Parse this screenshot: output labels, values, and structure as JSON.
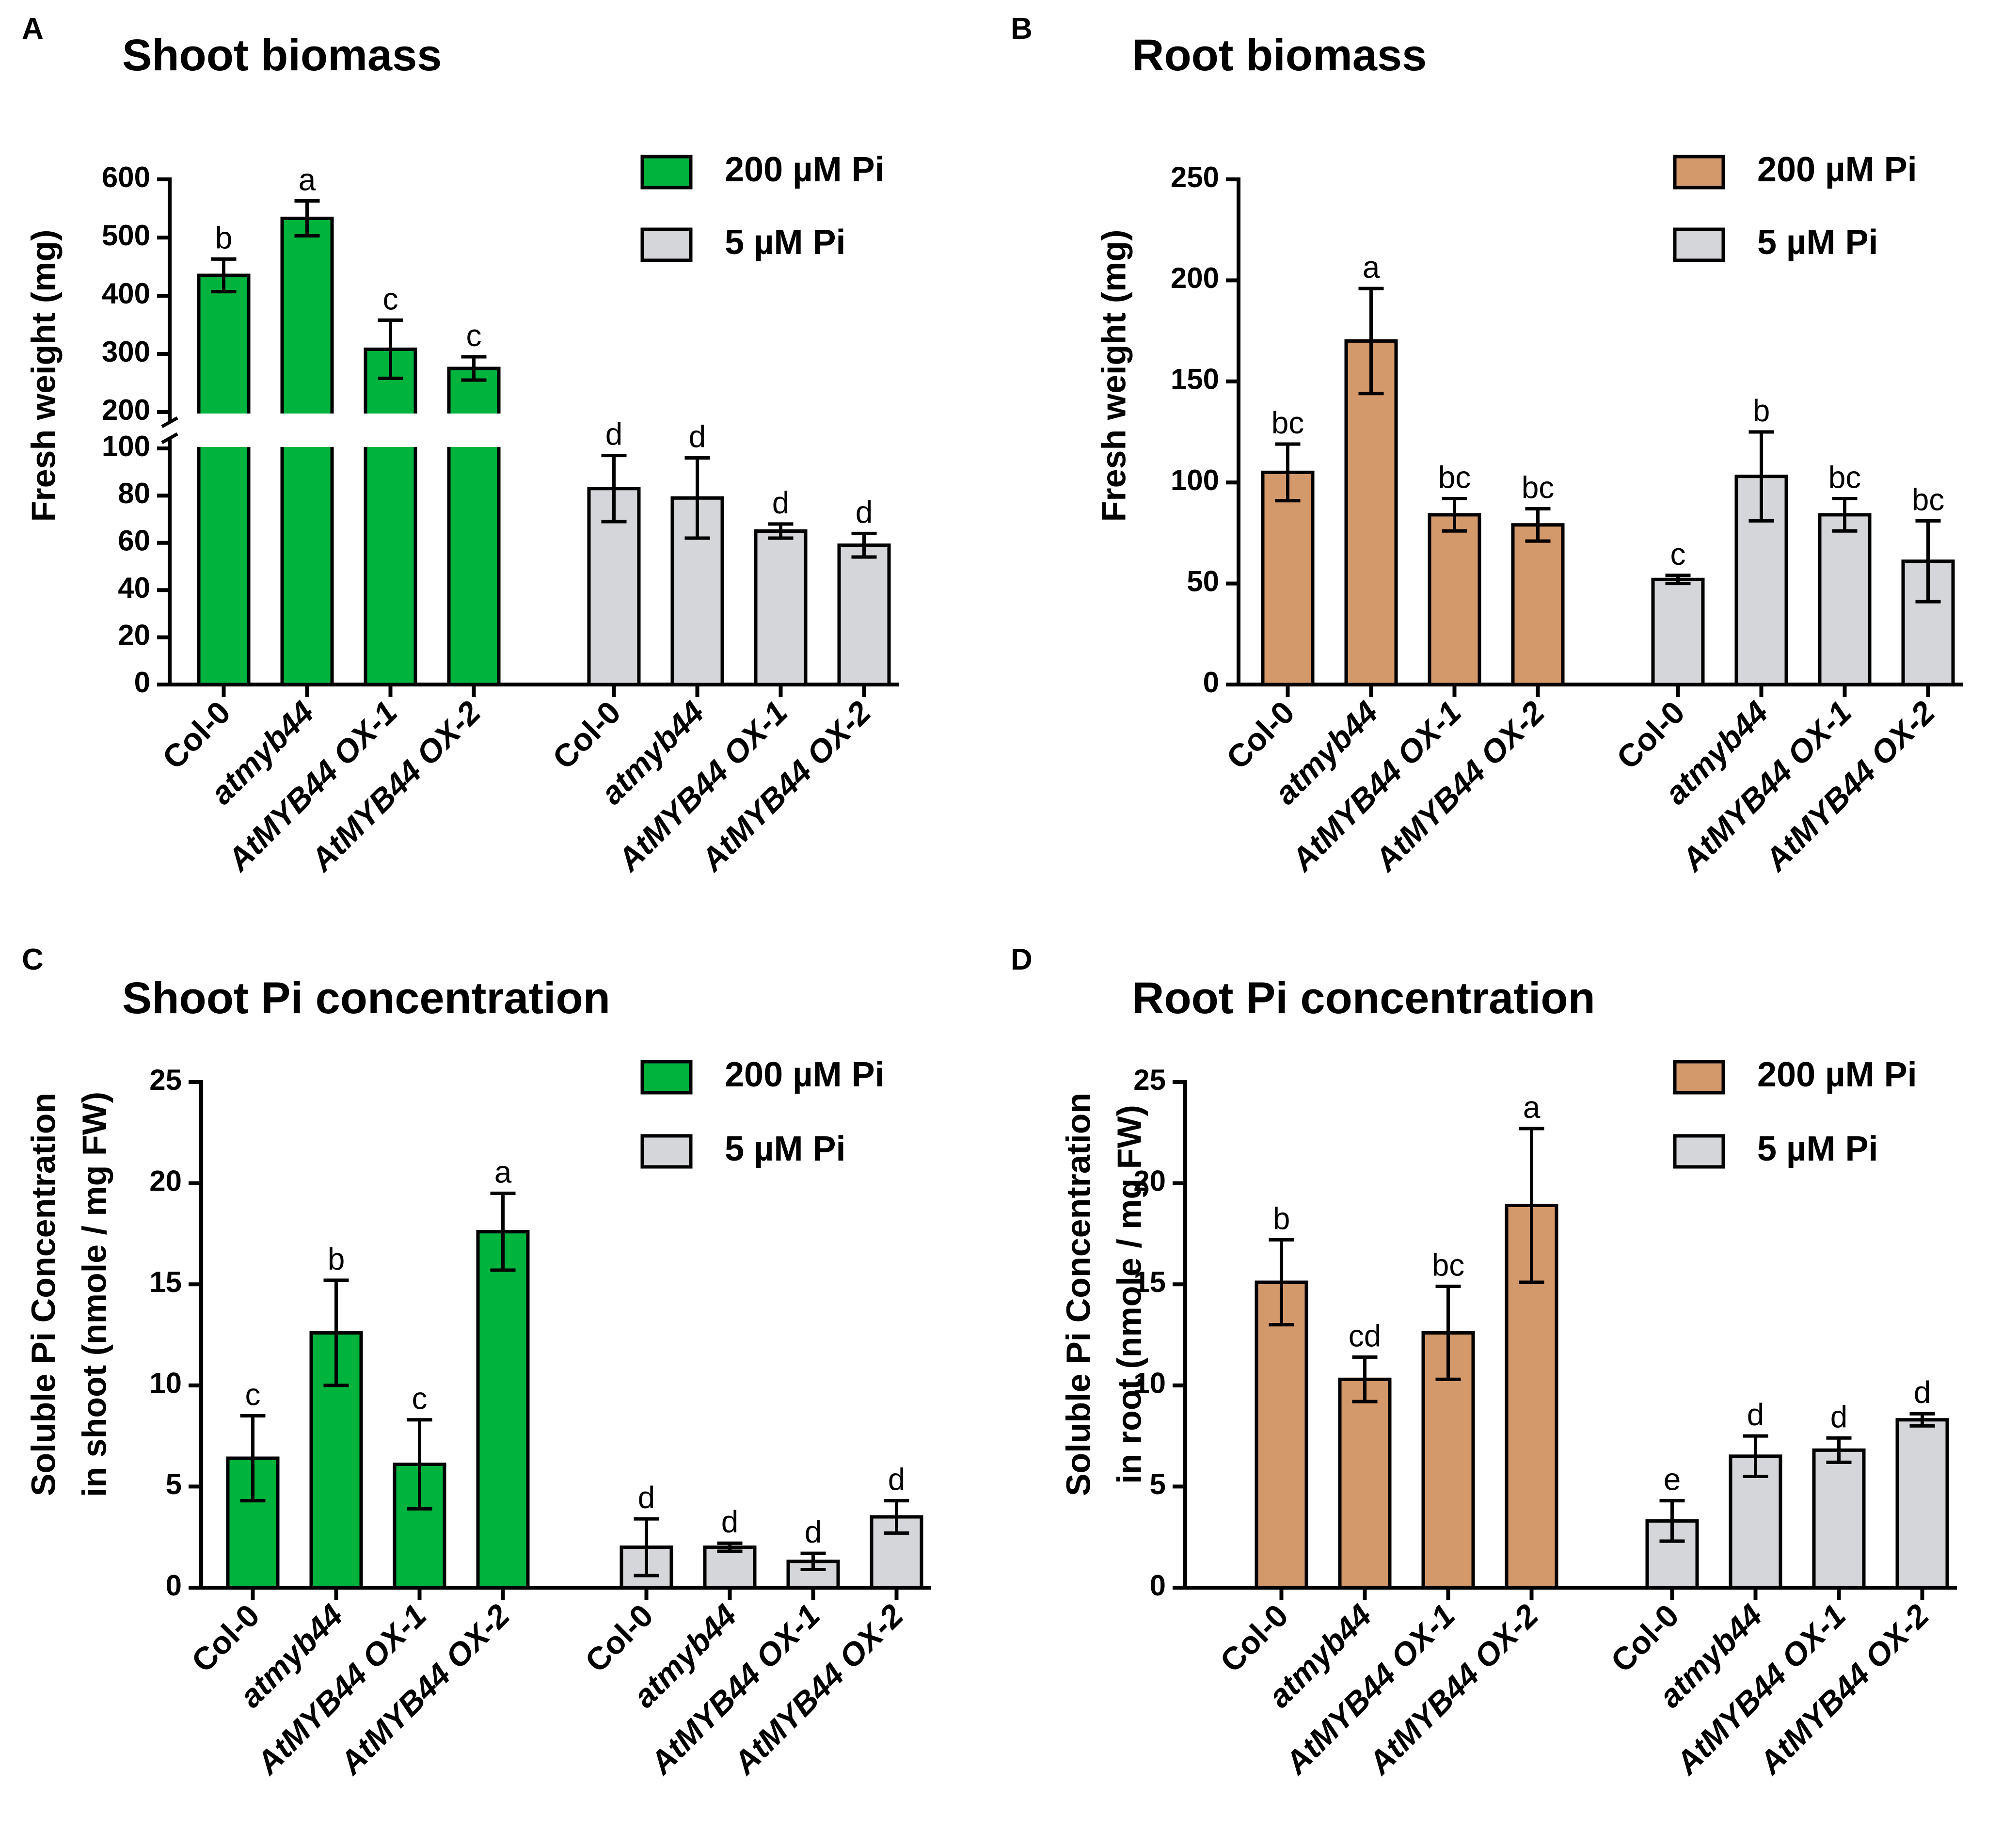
{
  "colors": {
    "shoot_200": "#00b33c",
    "root_200": "#d4996a",
    "low_pi": "#d4d6d9",
    "stroke": "#000000"
  },
  "chart_data": [
    {
      "type": "bar",
      "panel_letter": "A",
      "title": "Shoot biomass",
      "ylabel": "Fresh weight (mg)",
      "categories": [
        "Col-0",
        "atmyb44",
        "AtMYB44 OX-1",
        "AtMYB44 OX-2"
      ],
      "italic_categories": [
        "atmyb44",
        "AtMYB44 OX-1",
        "AtMYB44 OX-2"
      ],
      "series": [
        {
          "name": "200 µM Pi",
          "color_key": "shoot_200",
          "values": [
            435,
            533,
            308,
            275
          ],
          "errors": [
            28,
            30,
            50,
            20
          ],
          "letters": [
            "b",
            "a",
            "c",
            "c"
          ]
        },
        {
          "name": "5 µM Pi",
          "color_key": "low_pi",
          "values": [
            83,
            79,
            65,
            59
          ],
          "errors": [
            14,
            17,
            3,
            5
          ],
          "letters": [
            "d",
            "d",
            "d",
            "d"
          ]
        }
      ],
      "axis_break": {
        "lower": [
          0,
          100
        ],
        "upper": [
          200,
          600
        ]
      },
      "yticks_lower": [
        0,
        20,
        40,
        60,
        80,
        100
      ],
      "yticks_upper": [
        200,
        300,
        400,
        500,
        600
      ],
      "legend_position": "top-right"
    },
    {
      "type": "bar",
      "panel_letter": "B",
      "title": "Root biomass",
      "ylabel": "Fresh weight (mg)",
      "categories": [
        "Col-0",
        "atmyb44",
        "AtMYB44 OX-1",
        "AtMYB44 OX-2"
      ],
      "italic_categories": [
        "atmyb44",
        "AtMYB44 OX-1",
        "AtMYB44 OX-2"
      ],
      "series": [
        {
          "name": "200 µM Pi",
          "color_key": "root_200",
          "values": [
            105,
            170,
            84,
            79
          ],
          "errors": [
            14,
            26,
            8,
            8
          ],
          "letters": [
            "bc",
            "a",
            "bc",
            "bc"
          ]
        },
        {
          "name": "5 µM Pi",
          "color_key": "low_pi",
          "values": [
            52,
            103,
            84,
            61
          ],
          "errors": [
            2,
            22,
            8,
            20
          ],
          "letters": [
            "c",
            "b",
            "bc",
            "bc"
          ]
        }
      ],
      "ylim": [
        0,
        250
      ],
      "yticks": [
        0,
        50,
        100,
        150,
        200,
        250
      ],
      "legend_position": "top-right"
    },
    {
      "type": "bar",
      "panel_letter": "C",
      "title": "Shoot Pi concentration",
      "ylabel_lines": [
        "Soluble Pi Concentration",
        "in shoot (nmole / mg FW)"
      ],
      "categories": [
        "Col-0",
        "atmyb44",
        "AtMYB44 OX-1",
        "AtMYB44 OX-2"
      ],
      "italic_categories": [
        "atmyb44",
        "AtMYB44 OX-1",
        "AtMYB44 OX-2"
      ],
      "series": [
        {
          "name": "200 µM Pi",
          "color_key": "shoot_200",
          "values": [
            6.4,
            12.6,
            6.1,
            17.6
          ],
          "errors": [
            2.1,
            2.6,
            2.2,
            1.9
          ],
          "letters": [
            "c",
            "b",
            "c",
            "a"
          ]
        },
        {
          "name": "5 µM Pi",
          "color_key": "low_pi",
          "values": [
            2.0,
            2.0,
            1.3,
            3.5
          ],
          "errors": [
            1.4,
            0.2,
            0.4,
            0.8
          ],
          "letters": [
            "d",
            "d",
            "d",
            "d"
          ]
        }
      ],
      "ylim": [
        0,
        25
      ],
      "yticks": [
        0,
        5,
        10,
        15,
        20,
        25
      ],
      "legend_position": "top-right"
    },
    {
      "type": "bar",
      "panel_letter": "D",
      "title": "Root Pi concentration",
      "ylabel_lines": [
        "Soluble Pi Concentration",
        "in root (nmole / mg FW)"
      ],
      "categories": [
        "Col-0",
        "atmyb44",
        "AtMYB44 OX-1",
        "AtMYB44 OX-2"
      ],
      "italic_categories": [
        "atmyb44",
        "AtMYB44 OX-1",
        "AtMYB44 OX-2"
      ],
      "series": [
        {
          "name": "200 µM Pi",
          "color_key": "root_200",
          "values": [
            15.1,
            10.3,
            12.6,
            18.9
          ],
          "errors": [
            2.1,
            1.1,
            2.3,
            3.8
          ],
          "letters": [
            "b",
            "cd",
            "bc",
            "a"
          ]
        },
        {
          "name": "5 µM Pi",
          "color_key": "low_pi",
          "values": [
            3.3,
            6.5,
            6.8,
            8.3
          ],
          "errors": [
            1.0,
            1.0,
            0.6,
            0.3
          ],
          "letters": [
            "e",
            "d",
            "d",
            "d"
          ]
        }
      ],
      "ylim": [
        0,
        25
      ],
      "yticks": [
        0,
        5,
        10,
        15,
        20,
        25
      ],
      "legend_position": "top-right"
    }
  ]
}
